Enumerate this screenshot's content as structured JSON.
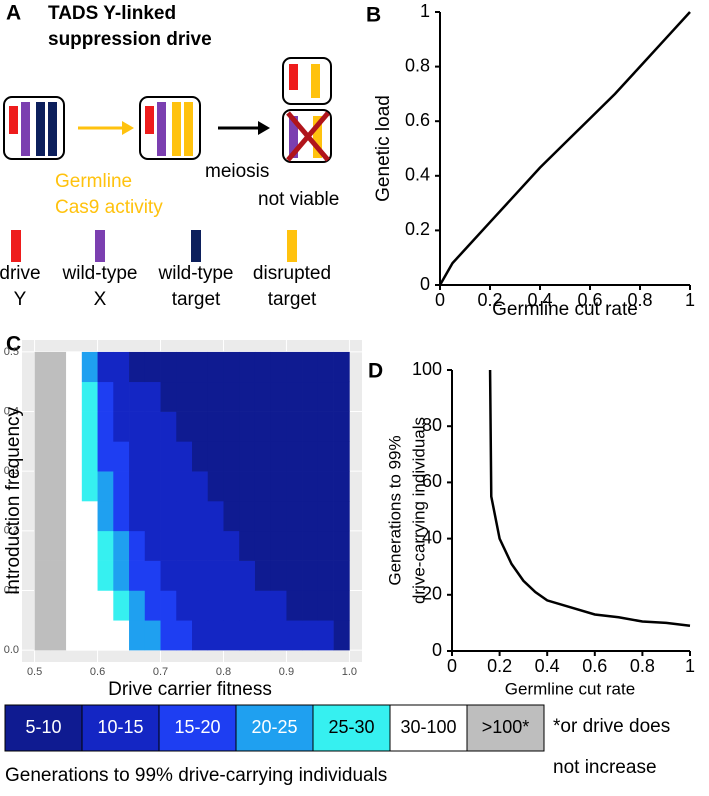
{
  "diagram": {
    "panel_label": "A",
    "title_lines": [
      "TADS Y-linked",
      "suppression drive"
    ],
    "cas9_lines": [
      "Germline",
      "Cas9 activity"
    ],
    "meiosis": "meiosis",
    "not_viable": "not viable",
    "key": [
      {
        "lines": [
          "drive",
          "Y"
        ],
        "color": "#ee1c1c"
      },
      {
        "lines": [
          "wild-type",
          "X"
        ],
        "color": "#7b3fb0"
      },
      {
        "lines": [
          "wild-type",
          "target"
        ],
        "color": "#0c1f5c"
      },
      {
        "lines": [
          "disrupted",
          "target"
        ],
        "color": "#ffc20e"
      }
    ]
  },
  "chart_data": [
    {
      "type": "line",
      "panel_label": "B",
      "xlabel": "Germline cut rate",
      "ylabel": [
        "Genetic load"
      ],
      "x": [
        0,
        0.05,
        0.1,
        0.2,
        0.3,
        0.4,
        0.5,
        0.6,
        0.7,
        0.8,
        0.9,
        1
      ],
      "values": [
        0,
        0.08,
        0.13,
        0.23,
        0.33,
        0.43,
        0.52,
        0.61,
        0.7,
        0.8,
        0.9,
        1
      ],
      "color": "#000000",
      "xlim": [
        0,
        1
      ],
      "ylim": [
        0,
        1
      ],
      "xticks": [
        0,
        0.2,
        0.4,
        0.6,
        0.8,
        1
      ],
      "yticks": [
        0,
        0.2,
        0.4,
        0.6,
        0.8,
        1
      ]
    },
    {
      "type": "heatmap",
      "panel_label": "C",
      "xlabel": "Drive carrier fitness",
      "ylabel": [
        "Introduction frequency"
      ],
      "x": [
        0.5125,
        0.5375,
        0.5625,
        0.5875,
        0.6125,
        0.6375,
        0.6625,
        0.6875,
        0.7125,
        0.7375,
        0.7625,
        0.7875,
        0.8125,
        0.8375,
        0.8625,
        0.8875,
        0.9125,
        0.9375,
        0.9625,
        0.9875
      ],
      "y": [
        0.025,
        0.075,
        0.125,
        0.175,
        0.225,
        0.275,
        0.325,
        0.375,
        0.425,
        0.475
      ],
      "values": [
        [
          150,
          150,
          50,
          50,
          50,
          50,
          22,
          22,
          17,
          17,
          12,
          12,
          12,
          12,
          12,
          12,
          12,
          12,
          12,
          8
        ],
        [
          150,
          150,
          50,
          50,
          50,
          27,
          22,
          17,
          17,
          12,
          12,
          12,
          12,
          12,
          12,
          12,
          8,
          8,
          8,
          8
        ],
        [
          150,
          150,
          50,
          50,
          27,
          22,
          17,
          17,
          12,
          12,
          12,
          12,
          12,
          12,
          8,
          8,
          8,
          8,
          8,
          8
        ],
        [
          150,
          150,
          50,
          50,
          27,
          22,
          17,
          12,
          12,
          12,
          12,
          12,
          12,
          8,
          8,
          8,
          8,
          8,
          8,
          8
        ],
        [
          150,
          150,
          50,
          50,
          22,
          17,
          12,
          12,
          12,
          12,
          12,
          12,
          8,
          8,
          8,
          8,
          8,
          8,
          8,
          8
        ],
        [
          150,
          150,
          50,
          27,
          22,
          17,
          12,
          12,
          12,
          12,
          12,
          8,
          8,
          8,
          8,
          8,
          8,
          8,
          8,
          8
        ],
        [
          150,
          150,
          50,
          27,
          17,
          17,
          12,
          12,
          12,
          12,
          8,
          8,
          8,
          8,
          8,
          8,
          8,
          8,
          8,
          8
        ],
        [
          150,
          150,
          50,
          27,
          17,
          12,
          12,
          12,
          12,
          8,
          8,
          8,
          8,
          8,
          8,
          8,
          8,
          8,
          8,
          8
        ],
        [
          150,
          150,
          50,
          27,
          17,
          12,
          12,
          12,
          8,
          8,
          8,
          8,
          8,
          8,
          8,
          8,
          8,
          8,
          8,
          8
        ],
        [
          150,
          150,
          50,
          22,
          12,
          12,
          8,
          8,
          8,
          8,
          8,
          8,
          8,
          8,
          8,
          8,
          8,
          8,
          8,
          8
        ]
      ],
      "xlim": [
        0.48,
        1.02
      ],
      "ylim": [
        -0.02,
        0.52
      ],
      "xticks": [
        0.5,
        0.6,
        0.7,
        0.8,
        0.9,
        {
          "value": 1,
          "label": "1.0"
        }
      ],
      "yticks": [
        {
          "value": 0,
          "label": "0.0"
        },
        0.1,
        0.2,
        0.3,
        0.4,
        0.5
      ],
      "legend": {
        "title": "Generations to 99% drive-carrying individuals",
        "items": [
          {
            "label": "5-10",
            "color": "#0f1b91"
          },
          {
            "label": "10-15",
            "color": "#1426c4"
          },
          {
            "label": "15-20",
            "color": "#1e3ef2"
          },
          {
            "label": "20-25",
            "color": "#1fa0f0"
          },
          {
            "label": "25-30",
            "color": "#36f0f0"
          },
          {
            "label": "30-100",
            "color": "#ffffff"
          },
          {
            "label": ">100*",
            "color": "#bebebe"
          }
        ],
        "note": [
          "*or drive does",
          "not increase"
        ]
      }
    },
    {
      "type": "line",
      "panel_label": "D",
      "xlabel": "Germline cut rate",
      "ylabel": [
        "Generations to 99%",
        "drive-carrying individuals"
      ],
      "x": [
        0.16,
        0.165,
        0.2,
        0.25,
        0.3,
        0.35,
        0.4,
        0.5,
        0.6,
        0.7,
        0.8,
        0.9,
        1
      ],
      "values": [
        100,
        55,
        40,
        31,
        25,
        21,
        18,
        15.5,
        13,
        12,
        10.5,
        10,
        9
      ],
      "color": "#000000",
      "xlim": [
        0,
        1
      ],
      "ylim": [
        0,
        100
      ],
      "xticks": [
        0,
        0.2,
        0.4,
        0.6,
        0.8,
        1
      ],
      "yticks": [
        0,
        20,
        40,
        60,
        80,
        100
      ]
    }
  ]
}
